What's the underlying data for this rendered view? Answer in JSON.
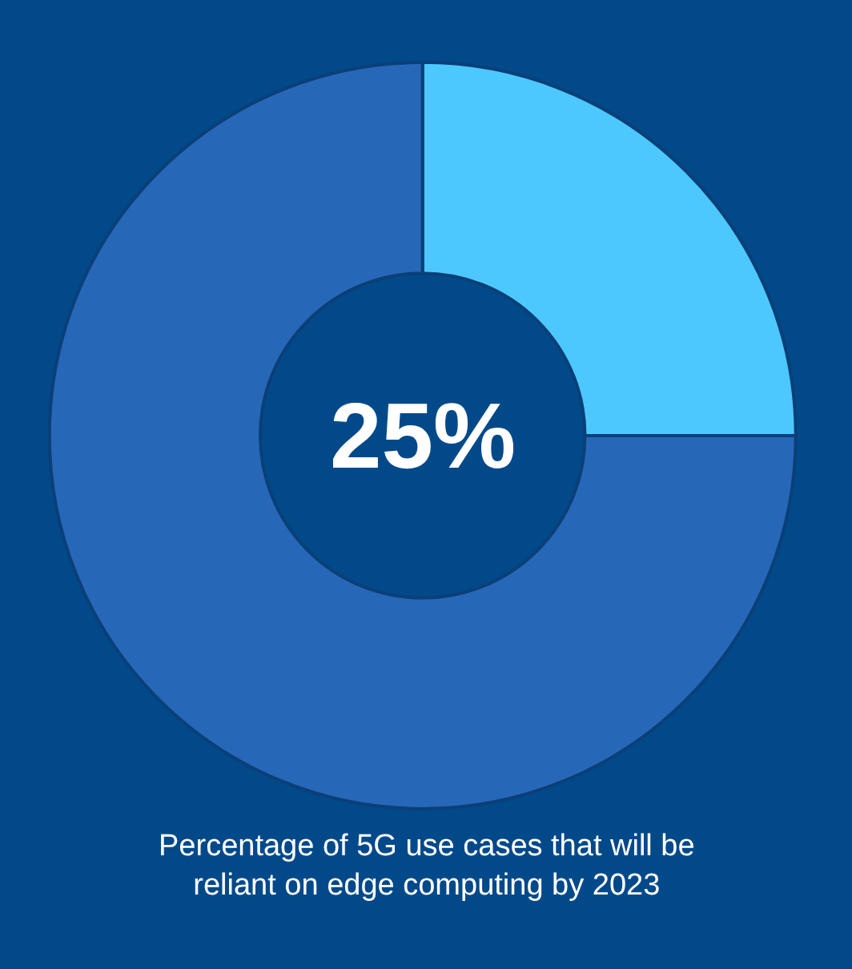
{
  "chart_data": {
    "type": "donut",
    "categories": [
      null,
      null
    ],
    "values": [
      25,
      75
    ],
    "colors": [
      "#4cc8fe",
      "#2767b7"
    ],
    "annotations": [
      "25%",
      "Percentage of 5G use cases that will be reliant on edge computing by 2023"
    ]
  }
}
